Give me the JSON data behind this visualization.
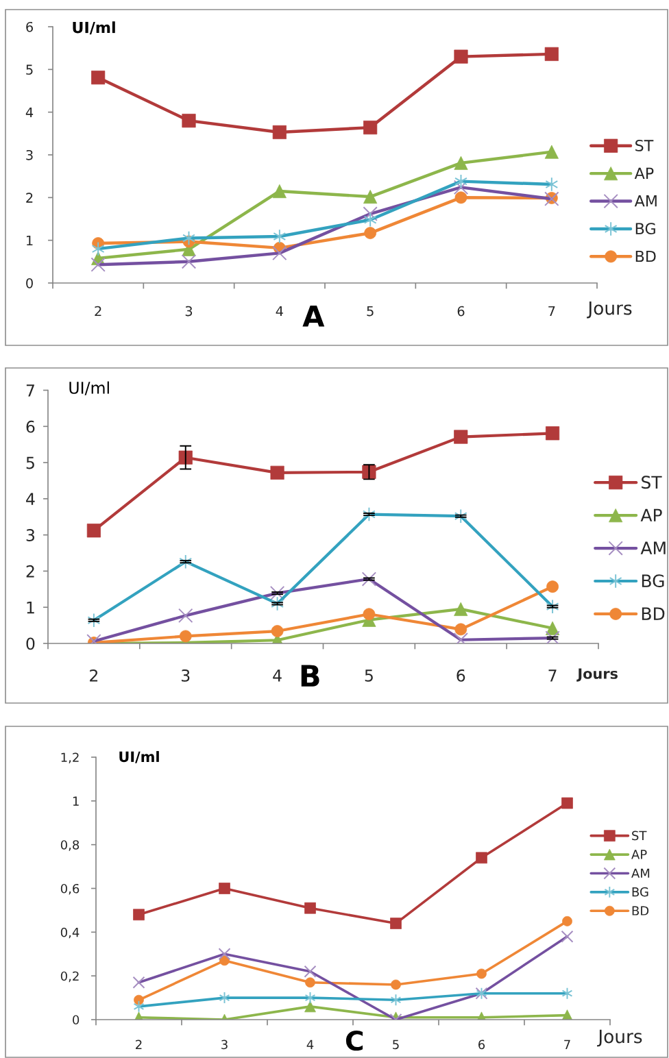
{
  "chart_data": [
    {
      "type": "line",
      "title": "A",
      "xlabel": "Jours",
      "ylabel": "UI/ml",
      "categories": [
        "2",
        "3",
        "4",
        "5",
        "6",
        "7"
      ],
      "ylim": [
        0,
        6
      ],
      "yticks": [
        0,
        1,
        2,
        3,
        4,
        5,
        6
      ],
      "legend": "right",
      "line_style": "solid",
      "series": [
        {
          "name": "ST",
          "color": "#b23a3a",
          "marker": "square",
          "values": [
            4.81,
            3.8,
            3.53,
            3.64,
            5.3,
            5.36
          ]
        },
        {
          "name": "AP",
          "color": "#8db64b",
          "marker": "triangle",
          "values": [
            0.58,
            0.79,
            2.15,
            2.02,
            2.81,
            3.07
          ]
        },
        {
          "name": "AM",
          "color": "#7450a0",
          "marker": "cross",
          "values": [
            0.43,
            0.5,
            0.7,
            1.62,
            2.24,
            1.97
          ]
        },
        {
          "name": "BG",
          "color": "#33a2bf",
          "marker": "cross",
          "values": [
            0.8,
            1.05,
            1.09,
            1.48,
            2.38,
            2.31
          ]
        },
        {
          "name": "BD",
          "color": "#ef8736",
          "marker": "circle",
          "values": [
            0.93,
            0.97,
            0.82,
            1.17,
            2.0,
            1.99
          ]
        }
      ]
    },
    {
      "type": "line",
      "title": "B",
      "xlabel": "Jours",
      "ylabel": "UI/ml",
      "categories": [
        "2",
        "3",
        "4",
        "5",
        "6",
        "7"
      ],
      "ylim": [
        0,
        7
      ],
      "yticks": [
        0,
        1,
        2,
        3,
        4,
        5,
        6,
        7
      ],
      "legend": "right",
      "line_style": "solid",
      "series": [
        {
          "name": "ST",
          "color": "#b23a3a",
          "marker": "square",
          "values": [
            3.12,
            5.14,
            4.72,
            4.74,
            5.71,
            5.81
          ],
          "errors": [
            null,
            0.32,
            null,
            0.2,
            null,
            null
          ]
        },
        {
          "name": "AP",
          "color": "#8db64b",
          "marker": "triangle",
          "values": [
            0.0,
            0.02,
            0.09,
            0.65,
            0.95,
            0.42
          ]
        },
        {
          "name": "AM",
          "color": "#7450a0",
          "marker": "cross",
          "values": [
            0.06,
            0.77,
            1.39,
            1.78,
            0.1,
            0.15
          ],
          "errors": [
            null,
            null,
            0.03,
            0.03,
            null,
            0.03
          ]
        },
        {
          "name": "BG",
          "color": "#33a2bf",
          "marker": "cross",
          "values": [
            0.64,
            2.26,
            1.1,
            3.57,
            3.52,
            1.02
          ],
          "errors": [
            0.03,
            0.03,
            0.03,
            0.03,
            0.03,
            0.03
          ]
        },
        {
          "name": "BD",
          "color": "#ef8736",
          "marker": "circle",
          "values": [
            0.02,
            0.2,
            0.34,
            0.81,
            0.39,
            1.57
          ]
        }
      ]
    },
    {
      "type": "line",
      "title": "C",
      "xlabel": "Jours",
      "ylabel": "UI/ml",
      "categories": [
        "2",
        "3",
        "4",
        "5",
        "6",
        "7"
      ],
      "ylim": [
        0,
        1.2
      ],
      "yticks": [
        0,
        {
          "value": 0.2,
          "label": "0,2"
        },
        {
          "value": 0.4,
          "label": "0,4"
        },
        {
          "value": 0.6,
          "label": "0,6"
        },
        {
          "value": 0.8,
          "label": "0,8"
        },
        1,
        {
          "value": 1.2,
          "label": "1,2"
        }
      ],
      "legend": "right",
      "line_style": "solid",
      "series": [
        {
          "name": "ST",
          "color": "#b23a3a",
          "marker": "square",
          "values": [
            0.48,
            0.6,
            0.51,
            0.44,
            0.74,
            0.99
          ]
        },
        {
          "name": "AP",
          "color": "#8db64b",
          "marker": "triangle",
          "values": [
            0.01,
            0.0,
            0.06,
            0.01,
            0.01,
            0.02
          ]
        },
        {
          "name": "AM",
          "color": "#7450a0",
          "marker": "cross",
          "values": [
            0.17,
            0.3,
            0.22,
            0.0,
            0.12,
            0.38
          ]
        },
        {
          "name": "BG",
          "color": "#33a2bf",
          "marker": "cross",
          "values": [
            0.06,
            0.1,
            0.1,
            0.09,
            0.12,
            0.12
          ]
        },
        {
          "name": "BD",
          "color": "#ef8736",
          "marker": "circle",
          "values": [
            0.09,
            0.27,
            0.17,
            0.16,
            0.21,
            0.45
          ]
        }
      ]
    }
  ]
}
